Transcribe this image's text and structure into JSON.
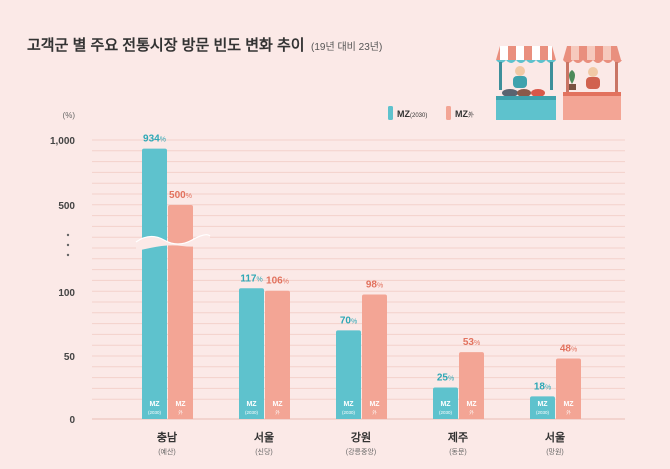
{
  "title": "고객군 별 주요 전통시장 방문 빈도 변화 추이",
  "subtitle": "(19년 대비 23년)",
  "colors": {
    "mz": "#5ec2cd",
    "mz_dark": "#2ea8b6",
    "non_mz": "#f3a595",
    "non_mz_dark": "#e2725e",
    "background": "#fbe9e7"
  },
  "chart_data": {
    "type": "bar",
    "title": "고객군 별 주요 전통시장 방문 빈도 변화 추이",
    "subtitle": "(19년 대비 23년)",
    "y_unit": "(%)",
    "y_ticks": [
      "1,000",
      "500",
      "100",
      "50",
      "0"
    ],
    "y_break_dots": "·\n·\n·",
    "legend": [
      {
        "label_main": "MZ",
        "label_sub": "(2030)",
        "color": "#5ec2cd"
      },
      {
        "label_main": "MZ",
        "label_sub": "外",
        "color": "#f3a595"
      }
    ],
    "legend_position": "top-right",
    "categories": [
      {
        "name": "충남",
        "sub": "(예산)"
      },
      {
        "name": "서울",
        "sub": "(신당)"
      },
      {
        "name": "강원",
        "sub": "(강릉중앙)"
      },
      {
        "name": "제주",
        "sub": "(동문)"
      },
      {
        "name": "서울",
        "sub": "(망원)"
      }
    ],
    "series": [
      {
        "name": "MZ(2030)",
        "values": [
          934,
          117,
          70,
          25,
          18
        ],
        "labels": [
          "934%",
          "117%",
          "70%",
          "25%",
          "18%"
        ],
        "bar_label_main": "MZ",
        "bar_label_sub": "(2030)"
      },
      {
        "name": "MZ外",
        "values": [
          500,
          106,
          98,
          53,
          48
        ],
        "labels": [
          "500%",
          "106%",
          "98%",
          "53%",
          "48%"
        ],
        "bar_label_main": "MZ",
        "bar_label_sub": "外"
      }
    ],
    "axis_break": true,
    "grid": true
  }
}
